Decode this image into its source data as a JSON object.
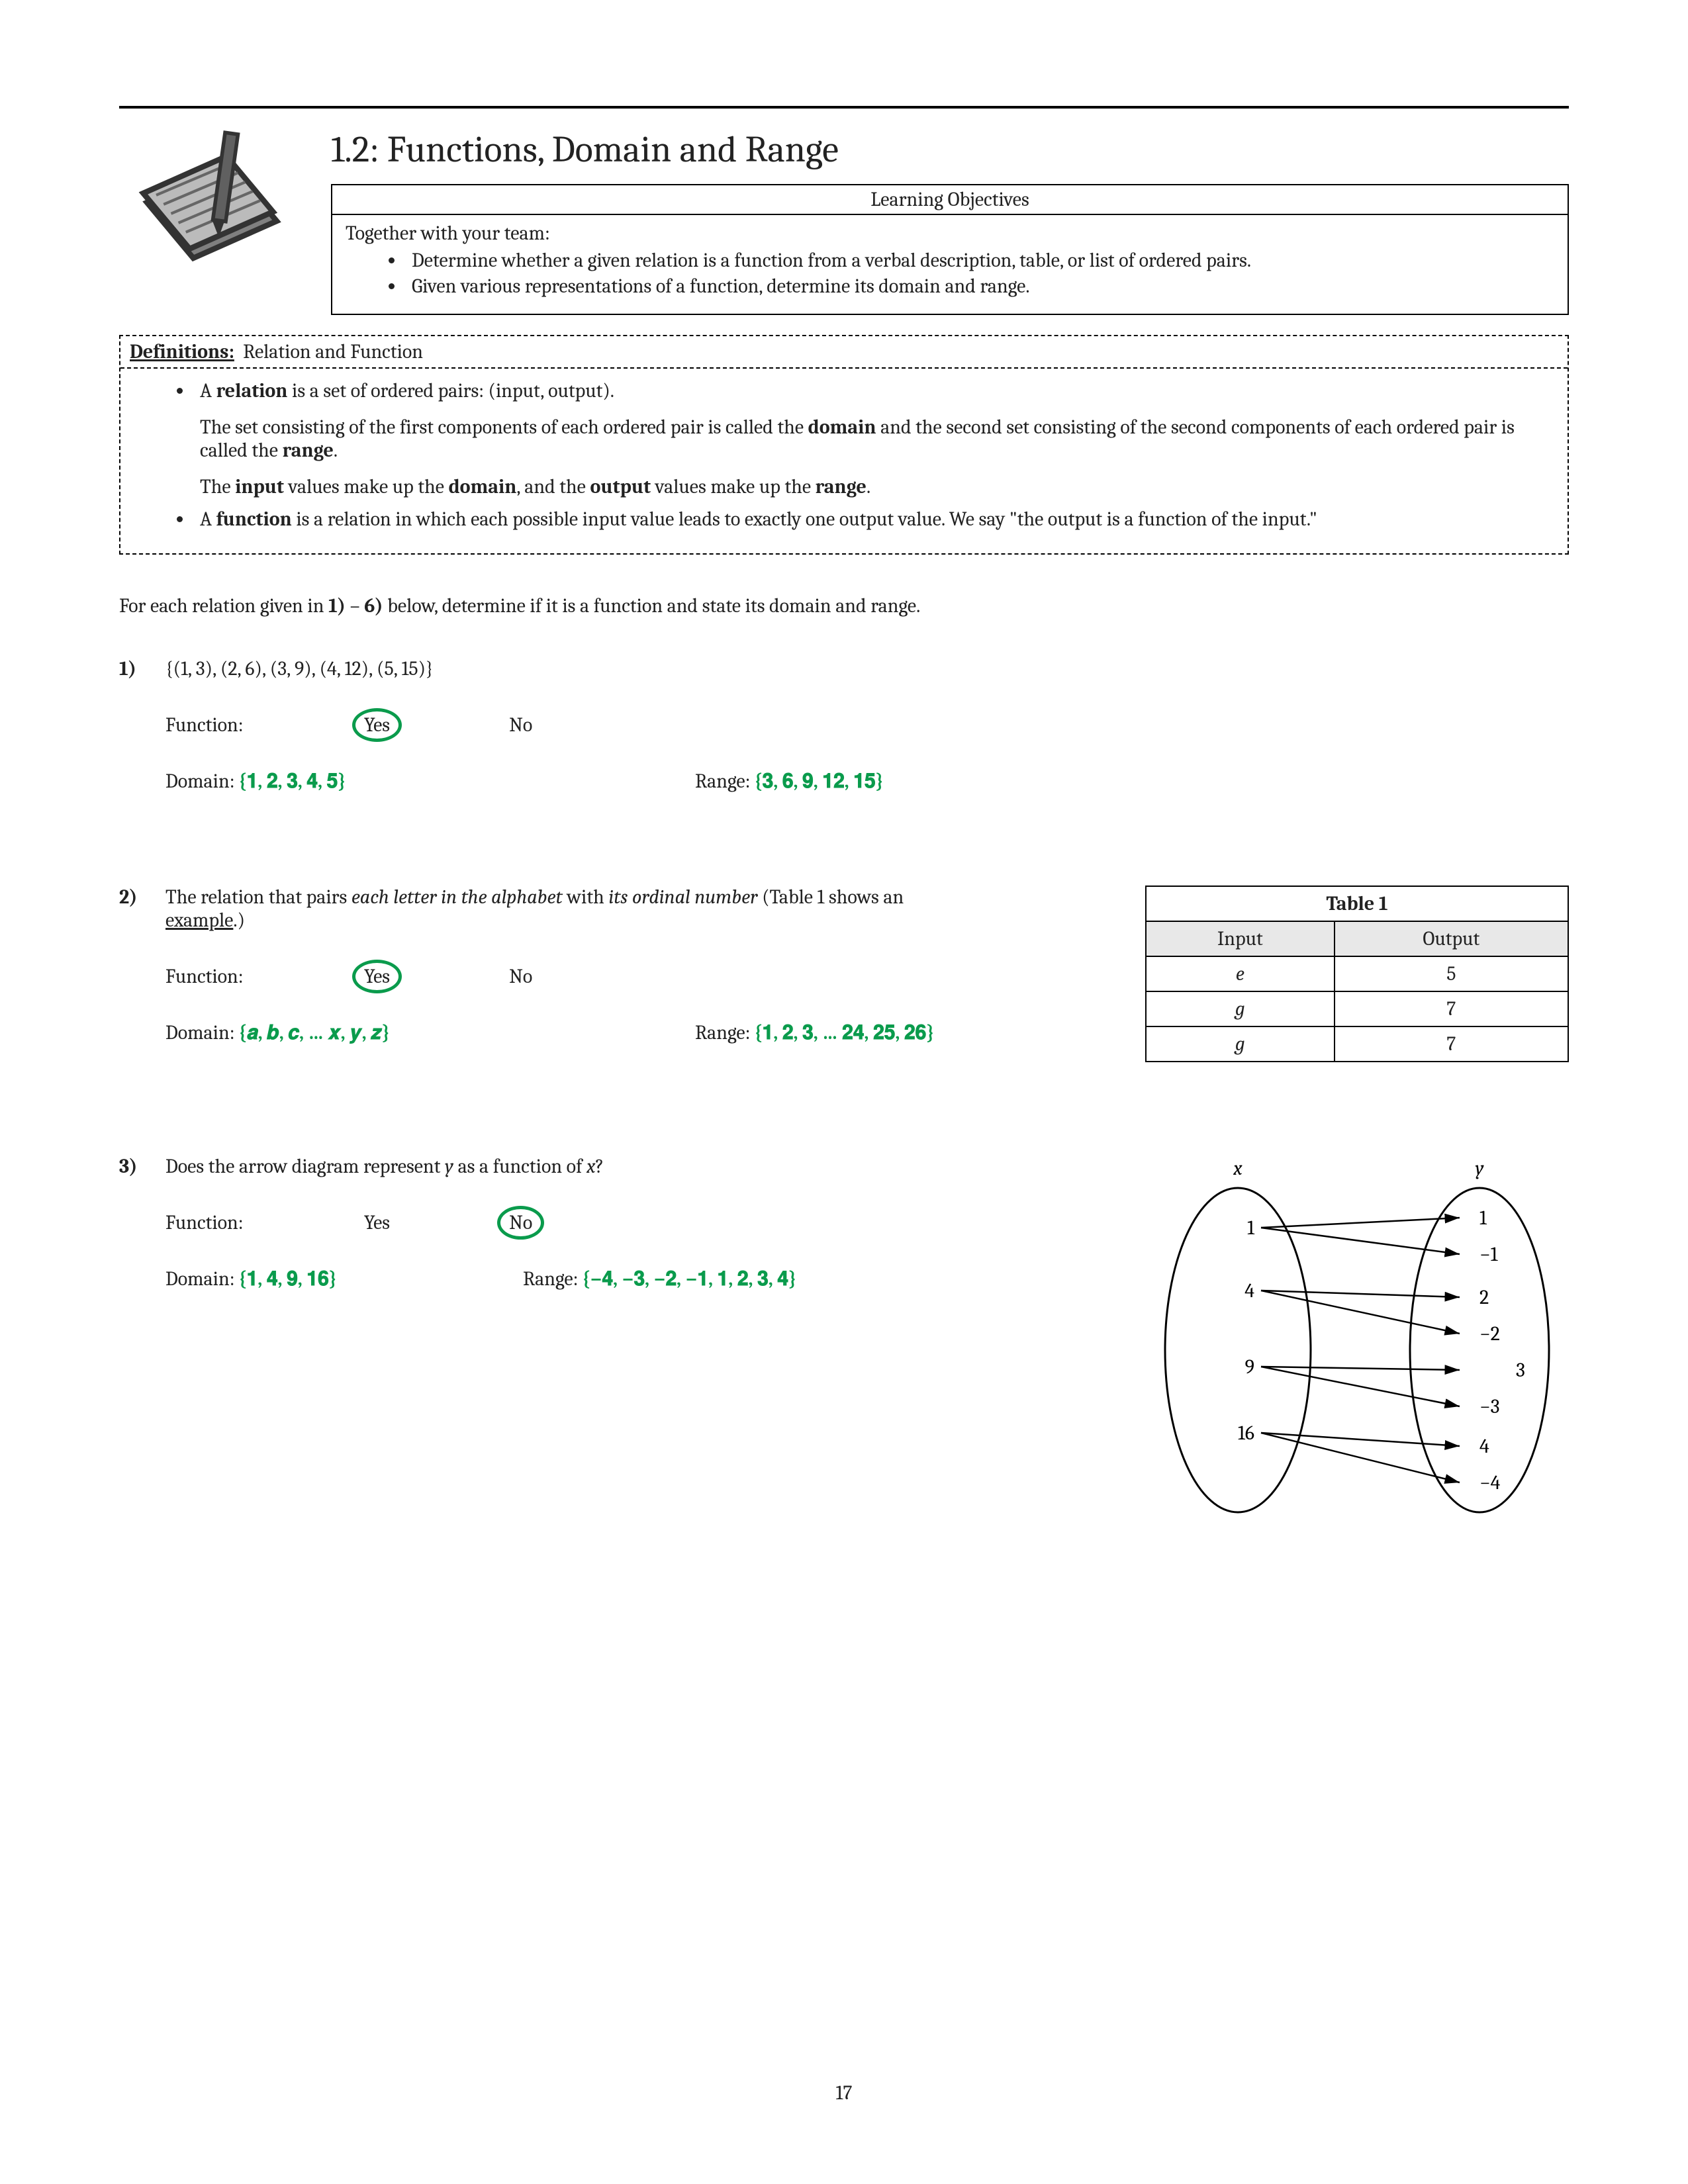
{
  "page_number": "17",
  "title": "1.2: Functions, Domain and Range",
  "objectives": {
    "heading": "Learning Objectives",
    "intro": "Together with your team:",
    "items": [
      "Determine whether a given relation is a function from a verbal description, table, or list of ordered pairs.",
      "Given various representations of a function, determine its domain and range."
    ]
  },
  "definitions": {
    "label": "Definitions:",
    "subject": "Relation and Function",
    "relation_intro_pre": "A ",
    "relation_intro_bold": "relation",
    "relation_intro_post": " is a set of ordered pairs: (input, output).",
    "domain_range_text_1": "The set consisting of the first components of each ordered pair is called the ",
    "domain_bold": "domain",
    "domain_range_text_2": " and the second set consisting of the second components of each ordered pair is called the ",
    "range_bold": "range",
    "input_output_1": "The ",
    "input_bold": "input",
    "input_output_2": " values make up the ",
    "input_output_3": ", and the ",
    "output_bold": "output",
    "input_output_4": " values make up the ",
    "function_pre": "A ",
    "function_bold": "function",
    "function_post": " is a relation in which each possible input value leads to exactly one output value. We say \"the output is a function of the input.\""
  },
  "instruction_pre": "For each relation given in ",
  "instruction_b1": "1)",
  "instruction_mid": " – ",
  "instruction_b2": "6)",
  "instruction_post": " below, determine if it is a function and state its domain and range.",
  "labels": {
    "function": "Function:",
    "yes": "Yes",
    "no": "No",
    "domain": "Domain:",
    "range": "Range:"
  },
  "q1": {
    "num": "1)",
    "set": "{(1, 3), (2, 6), (3, 9), (4, 12), (5, 15)}",
    "domain_ans": "{𝟏, 𝟐, 𝟑, 𝟒, 𝟓}",
    "range_ans": "{𝟑, 𝟔, 𝟗, 𝟏𝟐, 𝟏𝟓}",
    "circled": "yes"
  },
  "q2": {
    "num": "2)",
    "text_pre": "The relation that pairs ",
    "text_em1": "each letter in the alphabet",
    "text_mid": " with ",
    "text_em2": "its ordinal number",
    "text_paren_pre": " (Table 1 shows an ",
    "text_ex": "example",
    "text_paren_post": ".)",
    "domain_ans": "{𝒂, 𝒃, 𝒄, … 𝒙, 𝒚, 𝒛}",
    "range_ans": "{𝟏, 𝟐, 𝟑, … 𝟐𝟒, 𝟐𝟓, 𝟐𝟔}",
    "circled": "yes",
    "table": {
      "title": "Table 1",
      "col1": "Input",
      "col2": "Output",
      "rows": [
        [
          "e",
          "5"
        ],
        [
          "g",
          "7"
        ],
        [
          "g",
          "7"
        ]
      ]
    }
  },
  "q3": {
    "num": "3)",
    "text_pre": "Does the arrow diagram represent ",
    "text_y": "y",
    "text_mid": " as a function of ",
    "text_x": "x",
    "text_post": "?",
    "domain_ans": "{𝟏, 𝟒, 𝟗, 𝟏𝟔}",
    "range_ans": "{−𝟒, −𝟑, −𝟐, −𝟏, 𝟏, 𝟐, 𝟑, 𝟒}",
    "circled": "no",
    "diagram": {
      "x_label": "x",
      "y_label": "y",
      "x_vals": [
        "1",
        "4",
        "9",
        "16"
      ],
      "y_vals": [
        "1",
        "−1",
        "2",
        "−2",
        "3",
        "−3",
        "4",
        "−4"
      ],
      "edges": [
        [
          0,
          0
        ],
        [
          0,
          1
        ],
        [
          1,
          2
        ],
        [
          1,
          3
        ],
        [
          2,
          4
        ],
        [
          2,
          5
        ],
        [
          3,
          6
        ],
        [
          3,
          7
        ]
      ]
    }
  }
}
